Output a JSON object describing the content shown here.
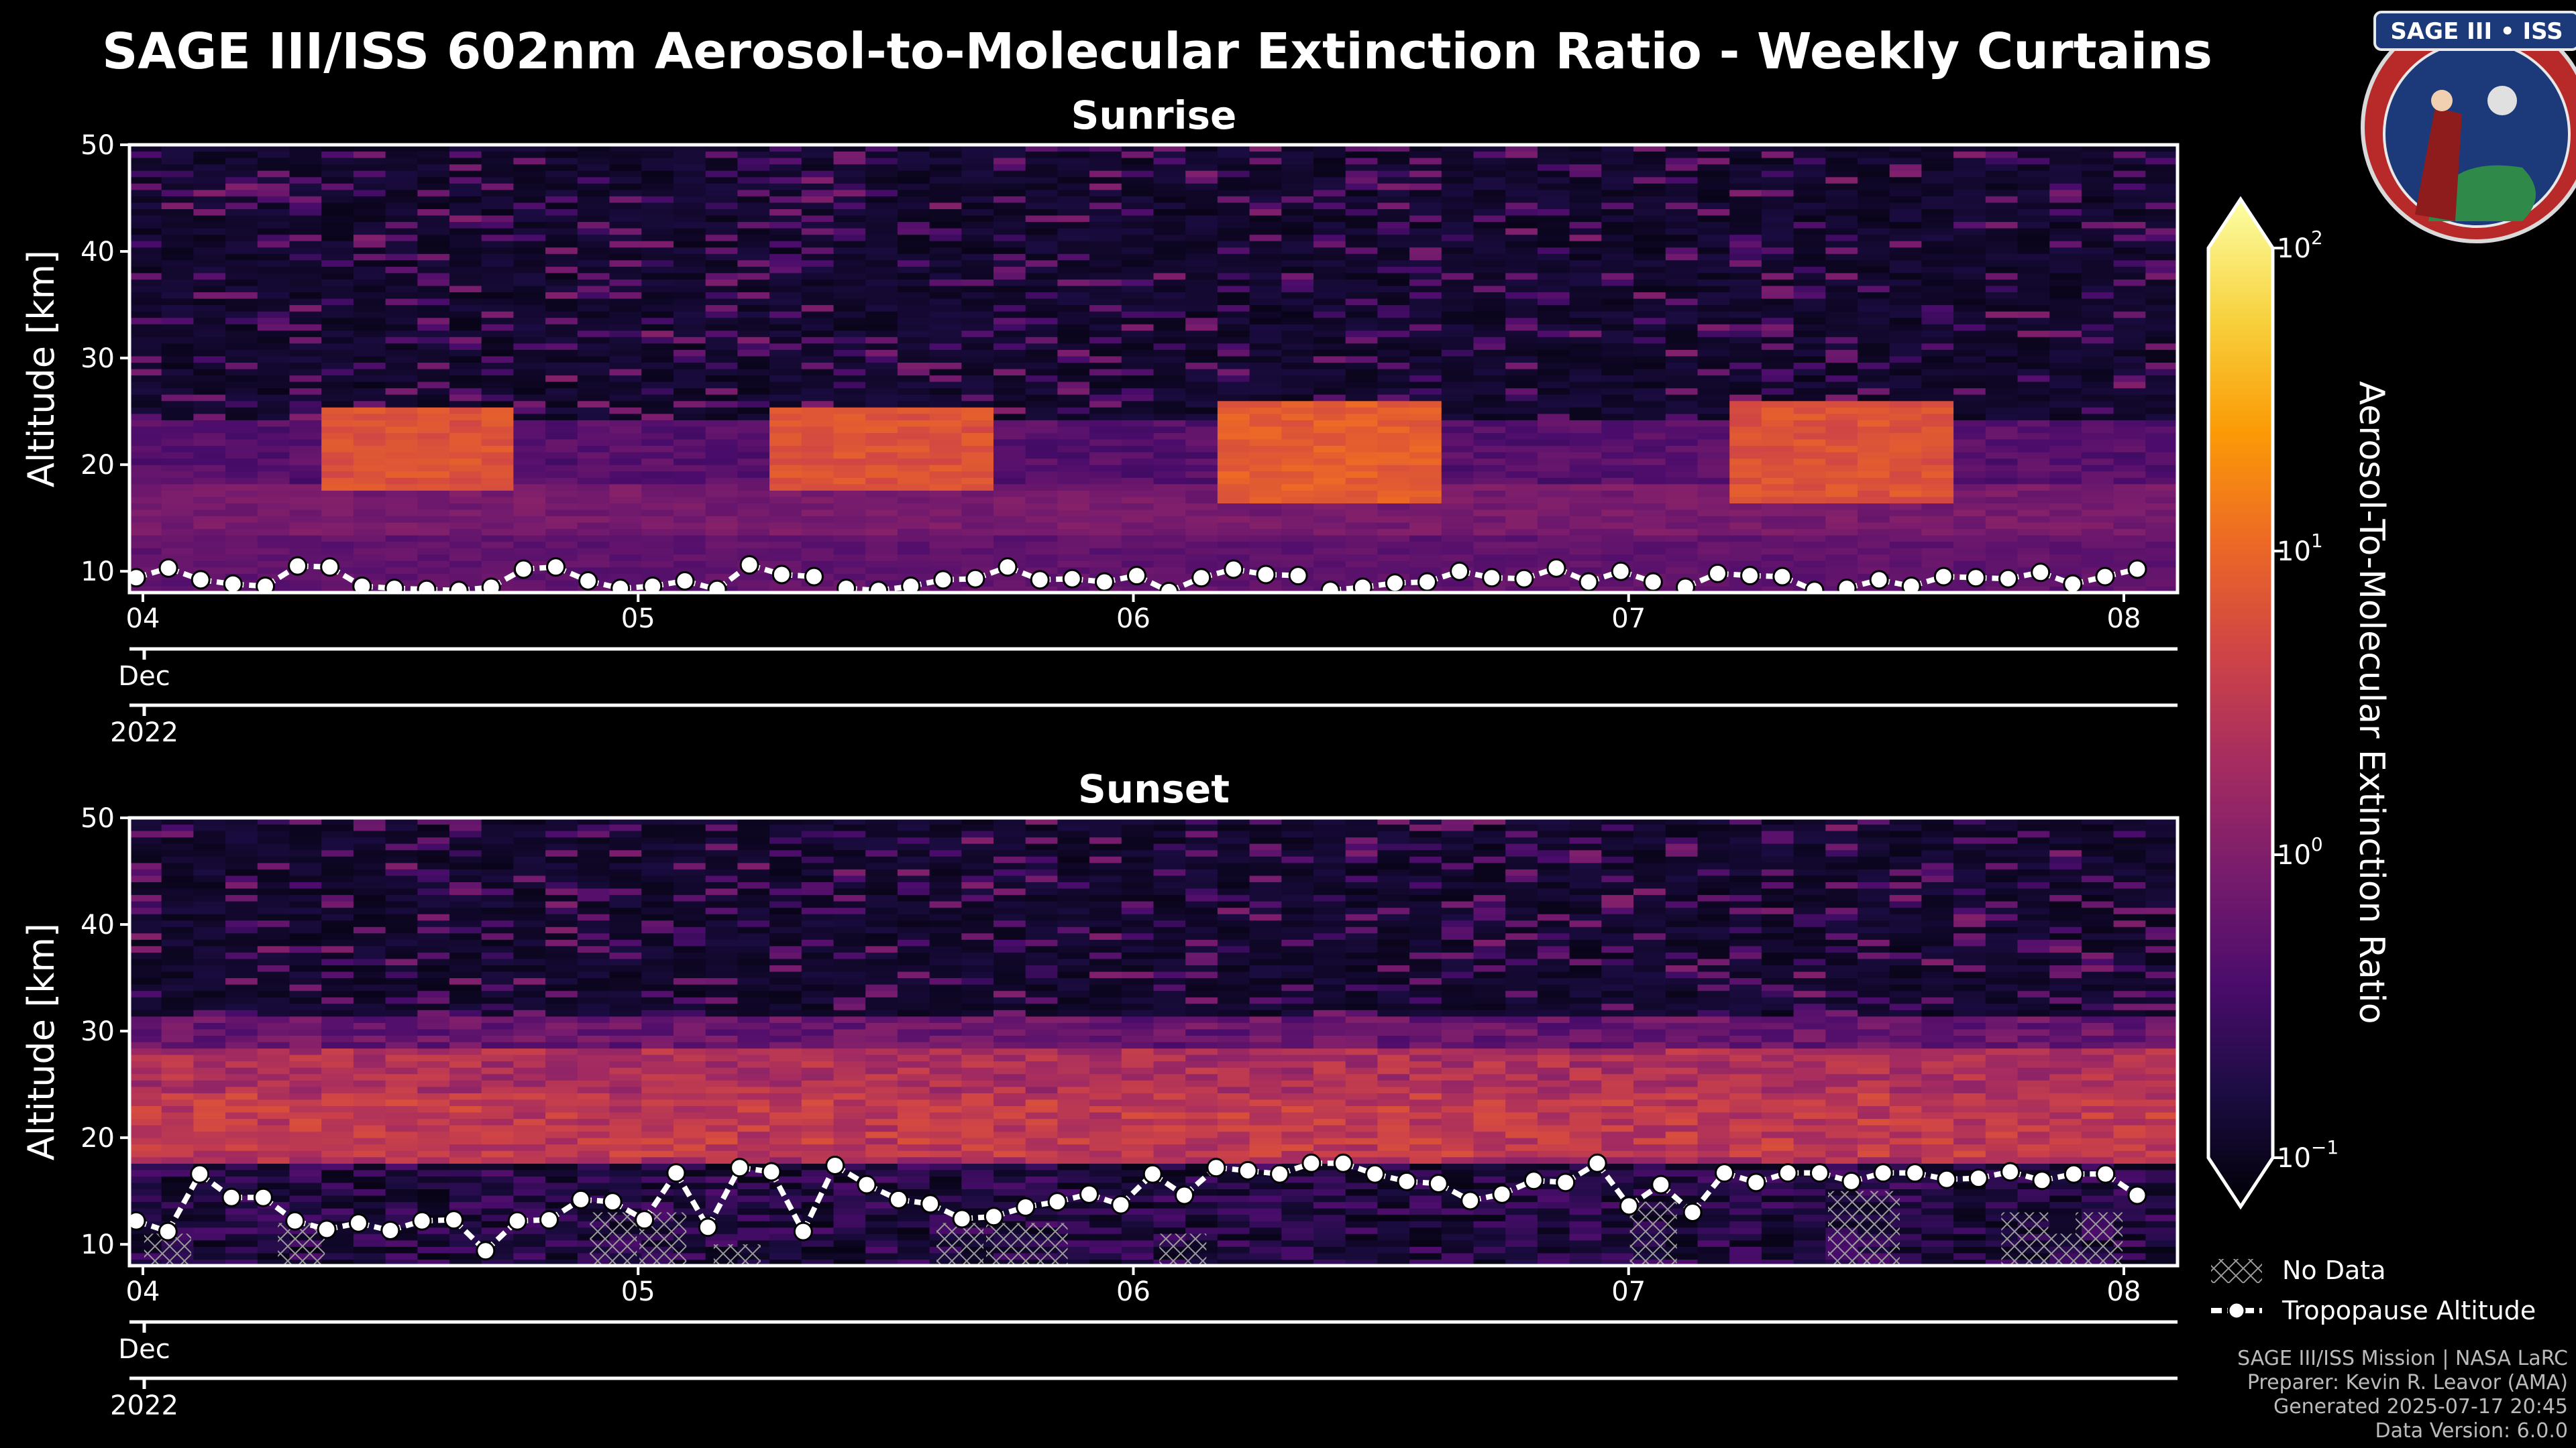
{
  "title": "SAGE III/ISS 602nm Aerosol-to-Molecular Extinction Ratio - Weekly Curtains",
  "logo": {
    "text": "SAGE III • ISS"
  },
  "chart_data": [
    {
      "type": "heatmap",
      "title": "Sunrise",
      "ylabel": "Altitude [km]",
      "ylim": [
        8,
        50
      ],
      "yticks": [
        "10",
        "20",
        "30",
        "40",
        "50"
      ],
      "x_ticks": [
        "04",
        "05",
        "06",
        "07",
        "08"
      ],
      "month_label": "Dec",
      "year_label": "2022",
      "tropopause_km": [
        9.4,
        10.3,
        9.2,
        8.8,
        8.6,
        10.5,
        10.4,
        8.6,
        8.4,
        8.3,
        8.2,
        8.5,
        10.2,
        10.4,
        9.1,
        8.4,
        8.6,
        9.1,
        8.3,
        10.6,
        9.7,
        9.5,
        8.4,
        8.2,
        8.6,
        9.2,
        9.3,
        10.4,
        9.2,
        9.3,
        9.0,
        9.6,
        8.1,
        9.4,
        10.2,
        9.7,
        9.6,
        8.2,
        8.5,
        8.9,
        9.0,
        10.0,
        9.4,
        9.3,
        10.3,
        9.0,
        10.0,
        9.0,
        8.5,
        9.8,
        9.6,
        9.5,
        8.2,
        8.4,
        9.2,
        8.6,
        9.5,
        9.4,
        9.3,
        9.9,
        8.8,
        9.5,
        10.2
      ],
      "tropopause_gaps_after": [
        21,
        36,
        47,
        52
      ],
      "high_aerosol_bands_km": [
        {
          "start": 0.33,
          "end": 0.73,
          "bottom": 17,
          "top": 25,
          "level": 0.62
        },
        {
          "start": 1.27,
          "end": 1.7,
          "bottom": 17,
          "top": 25,
          "level": 0.62
        },
        {
          "start": 2.2,
          "end": 2.63,
          "bottom": 16,
          "top": 26,
          "level": 0.65
        },
        {
          "start": 3.23,
          "end": 3.63,
          "bottom": 16,
          "top": 26,
          "level": 0.62
        }
      ],
      "no_data_markers": []
    },
    {
      "type": "heatmap",
      "title": "Sunset",
      "ylabel": "Altitude [km]",
      "ylim": [
        8,
        50
      ],
      "yticks": [
        "10",
        "20",
        "30",
        "40",
        "50"
      ],
      "x_ticks": [
        "04",
        "05",
        "06",
        "07",
        "08"
      ],
      "month_label": "Dec",
      "year_label": "2022",
      "tropopause_km": [
        12.2,
        11.2,
        16.6,
        14.4,
        14.4,
        12.2,
        11.4,
        12.0,
        11.3,
        12.2,
        12.3,
        9.4,
        12.2,
        12.3,
        14.2,
        14.0,
        12.3,
        16.7,
        11.6,
        17.2,
        16.8,
        11.2,
        17.4,
        15.6,
        14.2,
        13.8,
        12.4,
        12.6,
        13.5,
        14.0,
        14.7,
        13.7,
        16.6,
        14.6,
        17.2,
        16.9,
        16.6,
        17.6,
        17.6,
        16.6,
        15.9,
        15.7,
        14.1,
        14.7,
        16.0,
        15.8,
        17.6,
        13.6,
        15.6,
        13.0,
        16.7,
        15.8,
        16.7,
        16.7,
        15.9,
        16.7,
        16.7,
        16.1,
        16.2,
        16.8,
        16.0,
        16.6,
        16.6,
        14.6
      ],
      "tropopause_gaps_after": [],
      "no_data_markers": [
        {
          "x": 0.05,
          "top": 11
        },
        {
          "x": 0.32,
          "top": 12
        },
        {
          "x": 0.95,
          "top": 13
        },
        {
          "x": 1.05,
          "top": 13
        },
        {
          "x": 1.2,
          "top": 10
        },
        {
          "x": 1.65,
          "top": 12
        },
        {
          "x": 1.75,
          "top": 12
        },
        {
          "x": 1.82,
          "top": 12
        },
        {
          "x": 2.1,
          "top": 11
        },
        {
          "x": 3.05,
          "top": 14
        },
        {
          "x": 3.45,
          "top": 15
        },
        {
          "x": 3.5,
          "top": 15
        },
        {
          "x": 3.8,
          "top": 13
        },
        {
          "x": 3.88,
          "top": 11
        },
        {
          "x": 3.95,
          "top": 13
        }
      ]
    }
  ],
  "colorbar": {
    "label": "Aerosol-To-Molecular Extinction Ratio",
    "ticks": [
      {
        "base": "10",
        "exp": "2"
      },
      {
        "base": "10",
        "exp": "1"
      },
      {
        "base": "10",
        "exp": "0"
      },
      {
        "base": "10",
        "exp": "−1"
      }
    ]
  },
  "legend": {
    "no_data": "No Data",
    "tropopause": "Tropopause Altitude"
  },
  "footer": [
    "SAGE III/ISS Mission | NASA LaRC",
    "Preparer: Kevin R. Leavor (AMA)",
    "Generated 2025-07-17 20:45",
    "Data Version: 6.0.0"
  ],
  "colors": {
    "background": "#000000",
    "frame": "#ffffff",
    "hatch": "#9a9a9a",
    "colormap": [
      "#000004",
      "#1b0c41",
      "#4a0c6b",
      "#781c6d",
      "#a52c60",
      "#cf4446",
      "#ed6925",
      "#fb9b06",
      "#f7d13d",
      "#fcffa4"
    ]
  }
}
